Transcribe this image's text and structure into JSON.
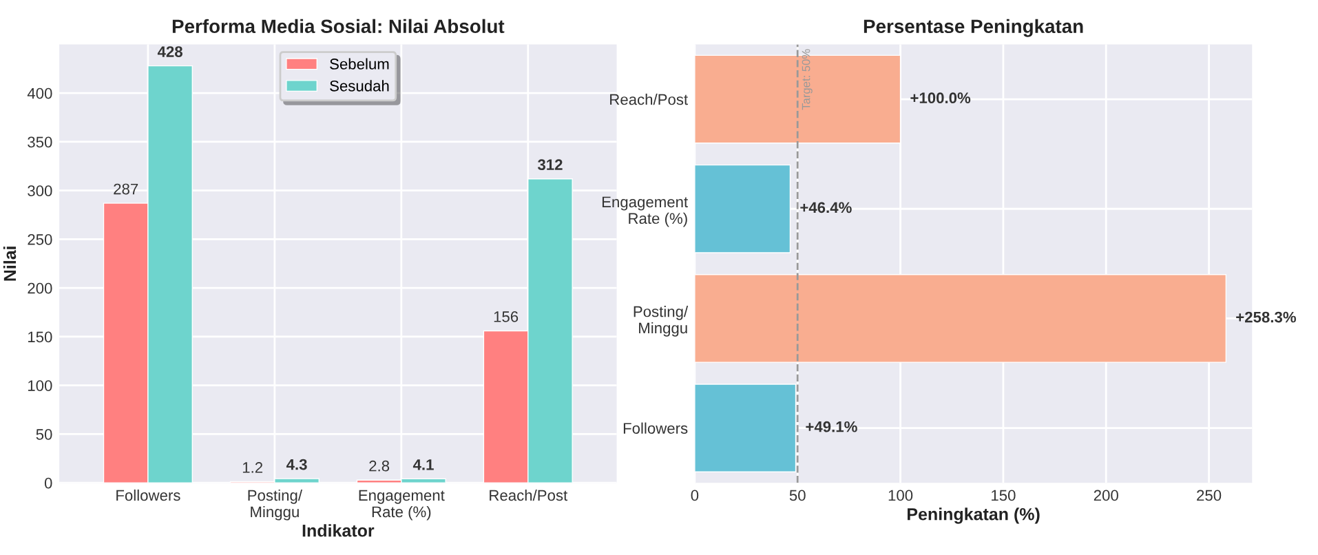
{
  "chart_data": [
    {
      "type": "bar",
      "title": "Performa Media Sosial: Nilai Absolut",
      "xlabel": "Indikator",
      "ylabel": "Nilai",
      "categories": [
        "Followers",
        "Posting/\nMinggu",
        "Engagement\nRate (%)",
        "Reach/Post"
      ],
      "series": [
        {
          "name": "Sebelum",
          "color": "#ff8080",
          "values": [
            287,
            1.2,
            2.8,
            156
          ]
        },
        {
          "name": "Sesudah",
          "color": "#6ed4cd",
          "values": [
            428,
            4.3,
            4.1,
            312
          ]
        }
      ],
      "ylim": [
        0,
        450
      ],
      "yticks": [
        0,
        50,
        100,
        150,
        200,
        250,
        300,
        350,
        400
      ],
      "grid": true,
      "legend": "top",
      "data_labels": true
    },
    {
      "type": "bar",
      "orientation": "horizontal",
      "title": "Persentase Peningkatan",
      "xlabel": "Peningkatan (%)",
      "categories": [
        "Reach/Post",
        "Engagement\nRate (%)",
        "Posting/\nMinggu",
        "Followers"
      ],
      "values": [
        100.0,
        46.4,
        258.3,
        49.1
      ],
      "colors": [
        "#f9ad90",
        "#65c1d6",
        "#f9ad90",
        "#65c1d6"
      ],
      "value_labels": [
        "+100.0%",
        "+46.4%",
        "+258.3%",
        "+49.1%"
      ],
      "xlim": [
        0,
        271
      ],
      "xticks": [
        0,
        50,
        100,
        150,
        200,
        250
      ],
      "grid": true,
      "ref_lines": [
        {
          "axis": "x",
          "value": 50,
          "label": "Target: 50%",
          "color": "#999999",
          "line_style": "dashed"
        }
      ]
    }
  ]
}
